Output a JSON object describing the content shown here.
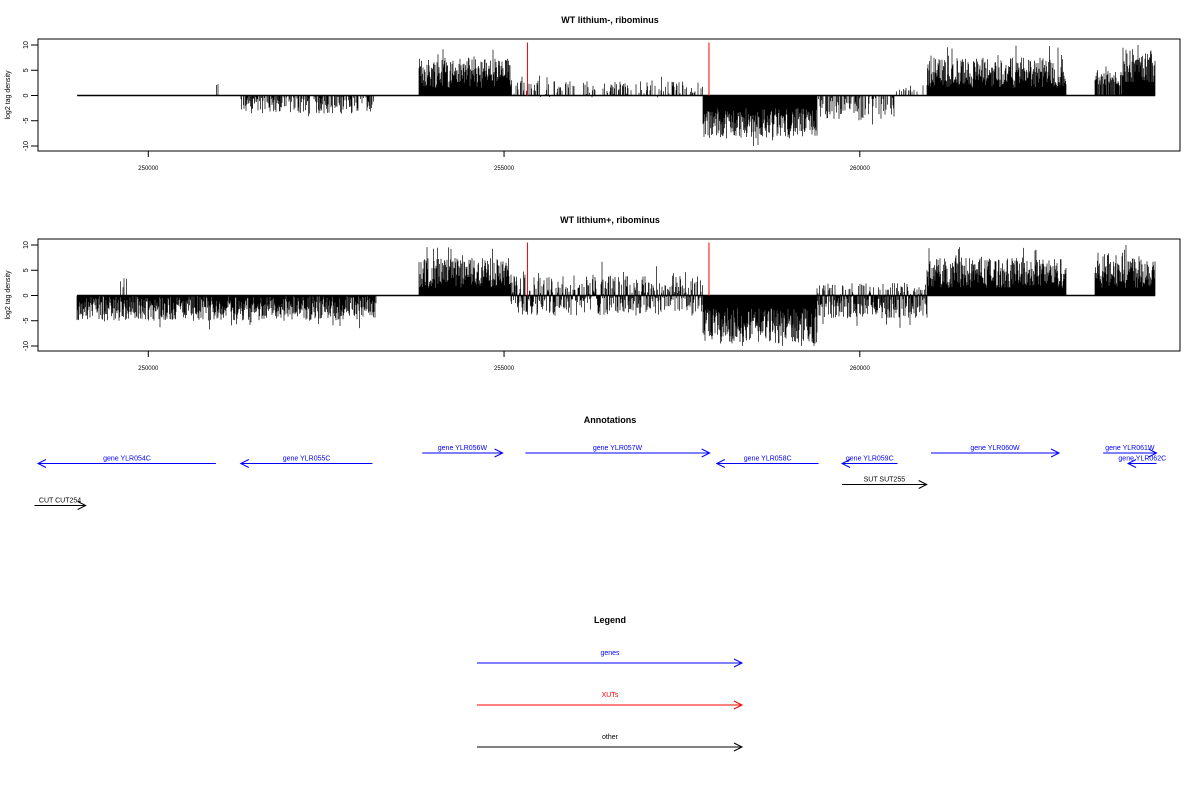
{
  "chart_data": [
    {
      "type": "bar",
      "title": "WT lithium-, ribominus",
      "xlabel": "",
      "ylabel": "log2 tag density",
      "xlim": [
        248450,
        264500
      ],
      "ylim": [
        -10,
        10
      ],
      "xticks": [
        250000,
        255000,
        260000
      ],
      "xtick_labels": [
        "250000",
        "255000",
        "260000"
      ],
      "yticks": [
        -10,
        -5,
        0,
        5,
        10
      ],
      "ytick_labels": [
        "-10",
        "-5",
        "0",
        "5",
        "10"
      ],
      "grid": false,
      "regions": [
        {
          "start": 249000,
          "end": 250950,
          "mean": 0,
          "amp": 0,
          "density": 0
        },
        {
          "start": 250950,
          "end": 251000,
          "mean": 2,
          "amp": 0.3,
          "density": 0.5
        },
        {
          "start": 251300,
          "end": 253200,
          "mean": -1.8,
          "amp": 1.8,
          "density": 0.6
        },
        {
          "start": 253800,
          "end": 255100,
          "mean": 4.5,
          "amp": 3,
          "density": 1
        },
        {
          "start": 255100,
          "end": 257800,
          "mean": 1.2,
          "amp": 1.6,
          "density": 0.35
        },
        {
          "start": 257800,
          "end": 259400,
          "mean": -5.5,
          "amp": 3,
          "density": 1
        },
        {
          "start": 259400,
          "end": 260500,
          "mean": -2.5,
          "amp": 2.5,
          "density": 0.6
        },
        {
          "start": 260500,
          "end": 260900,
          "mean": 1,
          "amp": 1,
          "density": 0.25
        },
        {
          "start": 260950,
          "end": 262900,
          "mean": 4.5,
          "amp": 3,
          "density": 1
        },
        {
          "start": 263300,
          "end": 263700,
          "mean": 3.5,
          "amp": 1.5,
          "density": 0.8
        },
        {
          "start": 263700,
          "end": 264150,
          "mean": 6,
          "amp": 3.5,
          "density": 1
        }
      ],
      "highlights": [
        {
          "x": 255330,
          "value": 10.5,
          "color": "#ff0000"
        },
        {
          "x": 257880,
          "value": 10.5,
          "color": "#ff0000"
        }
      ]
    },
    {
      "type": "bar",
      "title": "WT lithium+, ribominus",
      "xlabel": "",
      "ylabel": "log2 tag density",
      "xlim": [
        248450,
        264500
      ],
      "ylim": [
        -10,
        10
      ],
      "xticks": [
        250000,
        255000,
        260000
      ],
      "xtick_labels": [
        "250000",
        "255000",
        "260000"
      ],
      "yticks": [
        -10,
        -5,
        0,
        5,
        10
      ],
      "ytick_labels": [
        "-10",
        "-5",
        "0",
        "5",
        "10"
      ],
      "grid": false,
      "regions": [
        {
          "start": 249000,
          "end": 253200,
          "mean": -2.5,
          "amp": 2.5,
          "density": 1
        },
        {
          "start": 249600,
          "end": 249700,
          "mean": 2.5,
          "amp": 1,
          "density": 0.4
        },
        {
          "start": 253800,
          "end": 255100,
          "mean": 4.5,
          "amp": 3,
          "density": 1
        },
        {
          "start": 255100,
          "end": 257800,
          "mean": 0,
          "amp": 4,
          "density": 1
        },
        {
          "start": 257800,
          "end": 259400,
          "mean": -6,
          "amp": 3.5,
          "density": 1
        },
        {
          "start": 259400,
          "end": 260950,
          "mean": -1,
          "amp": 3.5,
          "density": 1
        },
        {
          "start": 260950,
          "end": 262900,
          "mean": 4.5,
          "amp": 3,
          "density": 1
        },
        {
          "start": 263300,
          "end": 264150,
          "mean": 5,
          "amp": 3.5,
          "density": 1
        }
      ],
      "highlights": [
        {
          "x": 255330,
          "value": 10.5,
          "color": "#ff0000"
        },
        {
          "x": 257880,
          "value": 10.5,
          "color": "#ff0000"
        }
      ]
    }
  ],
  "annotations": {
    "title": "Annotations",
    "genes_color": "#0000ff",
    "xut_color": "#ff0000",
    "other_color": "#000000",
    "features": [
      {
        "label": "gene YLR054C",
        "start": 248450,
        "end": 250950,
        "strand": "-",
        "row": 1,
        "kind": "gene"
      },
      {
        "label": "gene YLR055C",
        "start": 251300,
        "end": 253150,
        "strand": "-",
        "row": 1,
        "kind": "gene"
      },
      {
        "label": "gene YLR056W",
        "start": 253850,
        "end": 254980,
        "strand": "+",
        "row": 0,
        "kind": "gene"
      },
      {
        "label": "gene YLR057W",
        "start": 255300,
        "end": 257890,
        "strand": "+",
        "row": 0,
        "kind": "gene"
      },
      {
        "label": "gene YLR058C",
        "start": 257990,
        "end": 259420,
        "strand": "-",
        "row": 1,
        "kind": "gene"
      },
      {
        "label": "gene YLR059C",
        "start": 259750,
        "end": 260530,
        "strand": "-",
        "row": 1,
        "kind": "gene"
      },
      {
        "label": "gene YLR060W",
        "start": 261000,
        "end": 262800,
        "strand": "+",
        "row": 0,
        "kind": "gene"
      },
      {
        "label": "gene YLR061W",
        "start": 263420,
        "end": 264170,
        "strand": "+",
        "row": 0,
        "kind": "gene"
      },
      {
        "label": "gene YLR062C",
        "start": 263770,
        "end": 264170,
        "strand": "-",
        "row": 1,
        "kind": "gene"
      },
      {
        "label": "SUT SUT255",
        "start": 259750,
        "end": 260940,
        "strand": "+",
        "row": 3,
        "kind": "other"
      },
      {
        "label": "CUT CUT254",
        "start": 248400,
        "end": 249120,
        "strand": "+",
        "row": 5,
        "kind": "other"
      }
    ]
  },
  "legend": {
    "title": "Legend",
    "items": [
      {
        "label": "genes",
        "color": "#0000ff"
      },
      {
        "label": "XUTs",
        "color": "#ff0000"
      },
      {
        "label": "other",
        "color": "#000000"
      }
    ]
  }
}
